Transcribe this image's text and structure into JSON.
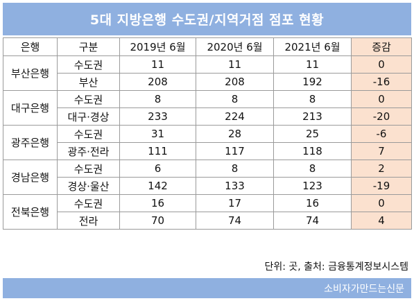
{
  "title": "5대 지방은행 수도권/지역거점 점포 현황",
  "table": {
    "headers": [
      "은행",
      "구분",
      "2019년 6월",
      "2020년 6월",
      "2021년 6월",
      "증감"
    ],
    "banks": [
      {
        "name": "부산은행",
        "rows": [
          {
            "category": "수도권",
            "y2019": "11",
            "y2020": "11",
            "y2021": "11",
            "change": "0"
          },
          {
            "category": "부산",
            "y2019": "208",
            "y2020": "208",
            "y2021": "192",
            "change": "-16"
          }
        ]
      },
      {
        "name": "대구은행",
        "rows": [
          {
            "category": "수도권",
            "y2019": "8",
            "y2020": "8",
            "y2021": "8",
            "change": "0"
          },
          {
            "category": "대구·경상",
            "y2019": "233",
            "y2020": "224",
            "y2021": "213",
            "change": "-20"
          }
        ]
      },
      {
        "name": "광주은행",
        "rows": [
          {
            "category": "수도권",
            "y2019": "31",
            "y2020": "28",
            "y2021": "25",
            "change": "-6"
          },
          {
            "category": "광주·전라",
            "y2019": "111",
            "y2020": "117",
            "y2021": "118",
            "change": "7"
          }
        ]
      },
      {
        "name": "경남은행",
        "rows": [
          {
            "category": "수도권",
            "y2019": "6",
            "y2020": "8",
            "y2021": "8",
            "change": "2"
          },
          {
            "category": "경상·울산",
            "y2019": "142",
            "y2020": "133",
            "y2021": "123",
            "change": "-19"
          }
        ]
      },
      {
        "name": "전북은행",
        "rows": [
          {
            "category": "수도권",
            "y2019": "16",
            "y2020": "17",
            "y2021": "16",
            "change": "0"
          },
          {
            "category": "전라",
            "y2019": "70",
            "y2020": "74",
            "y2021": "74",
            "change": "4"
          }
        ]
      }
    ]
  },
  "source_note": "단위: 곳, 출처: 금융통계정보시스템",
  "footer": "소비자가만드는신문",
  "colors": {
    "header_bar": "#8fb0e0",
    "change_column": "#fbe1cf"
  }
}
